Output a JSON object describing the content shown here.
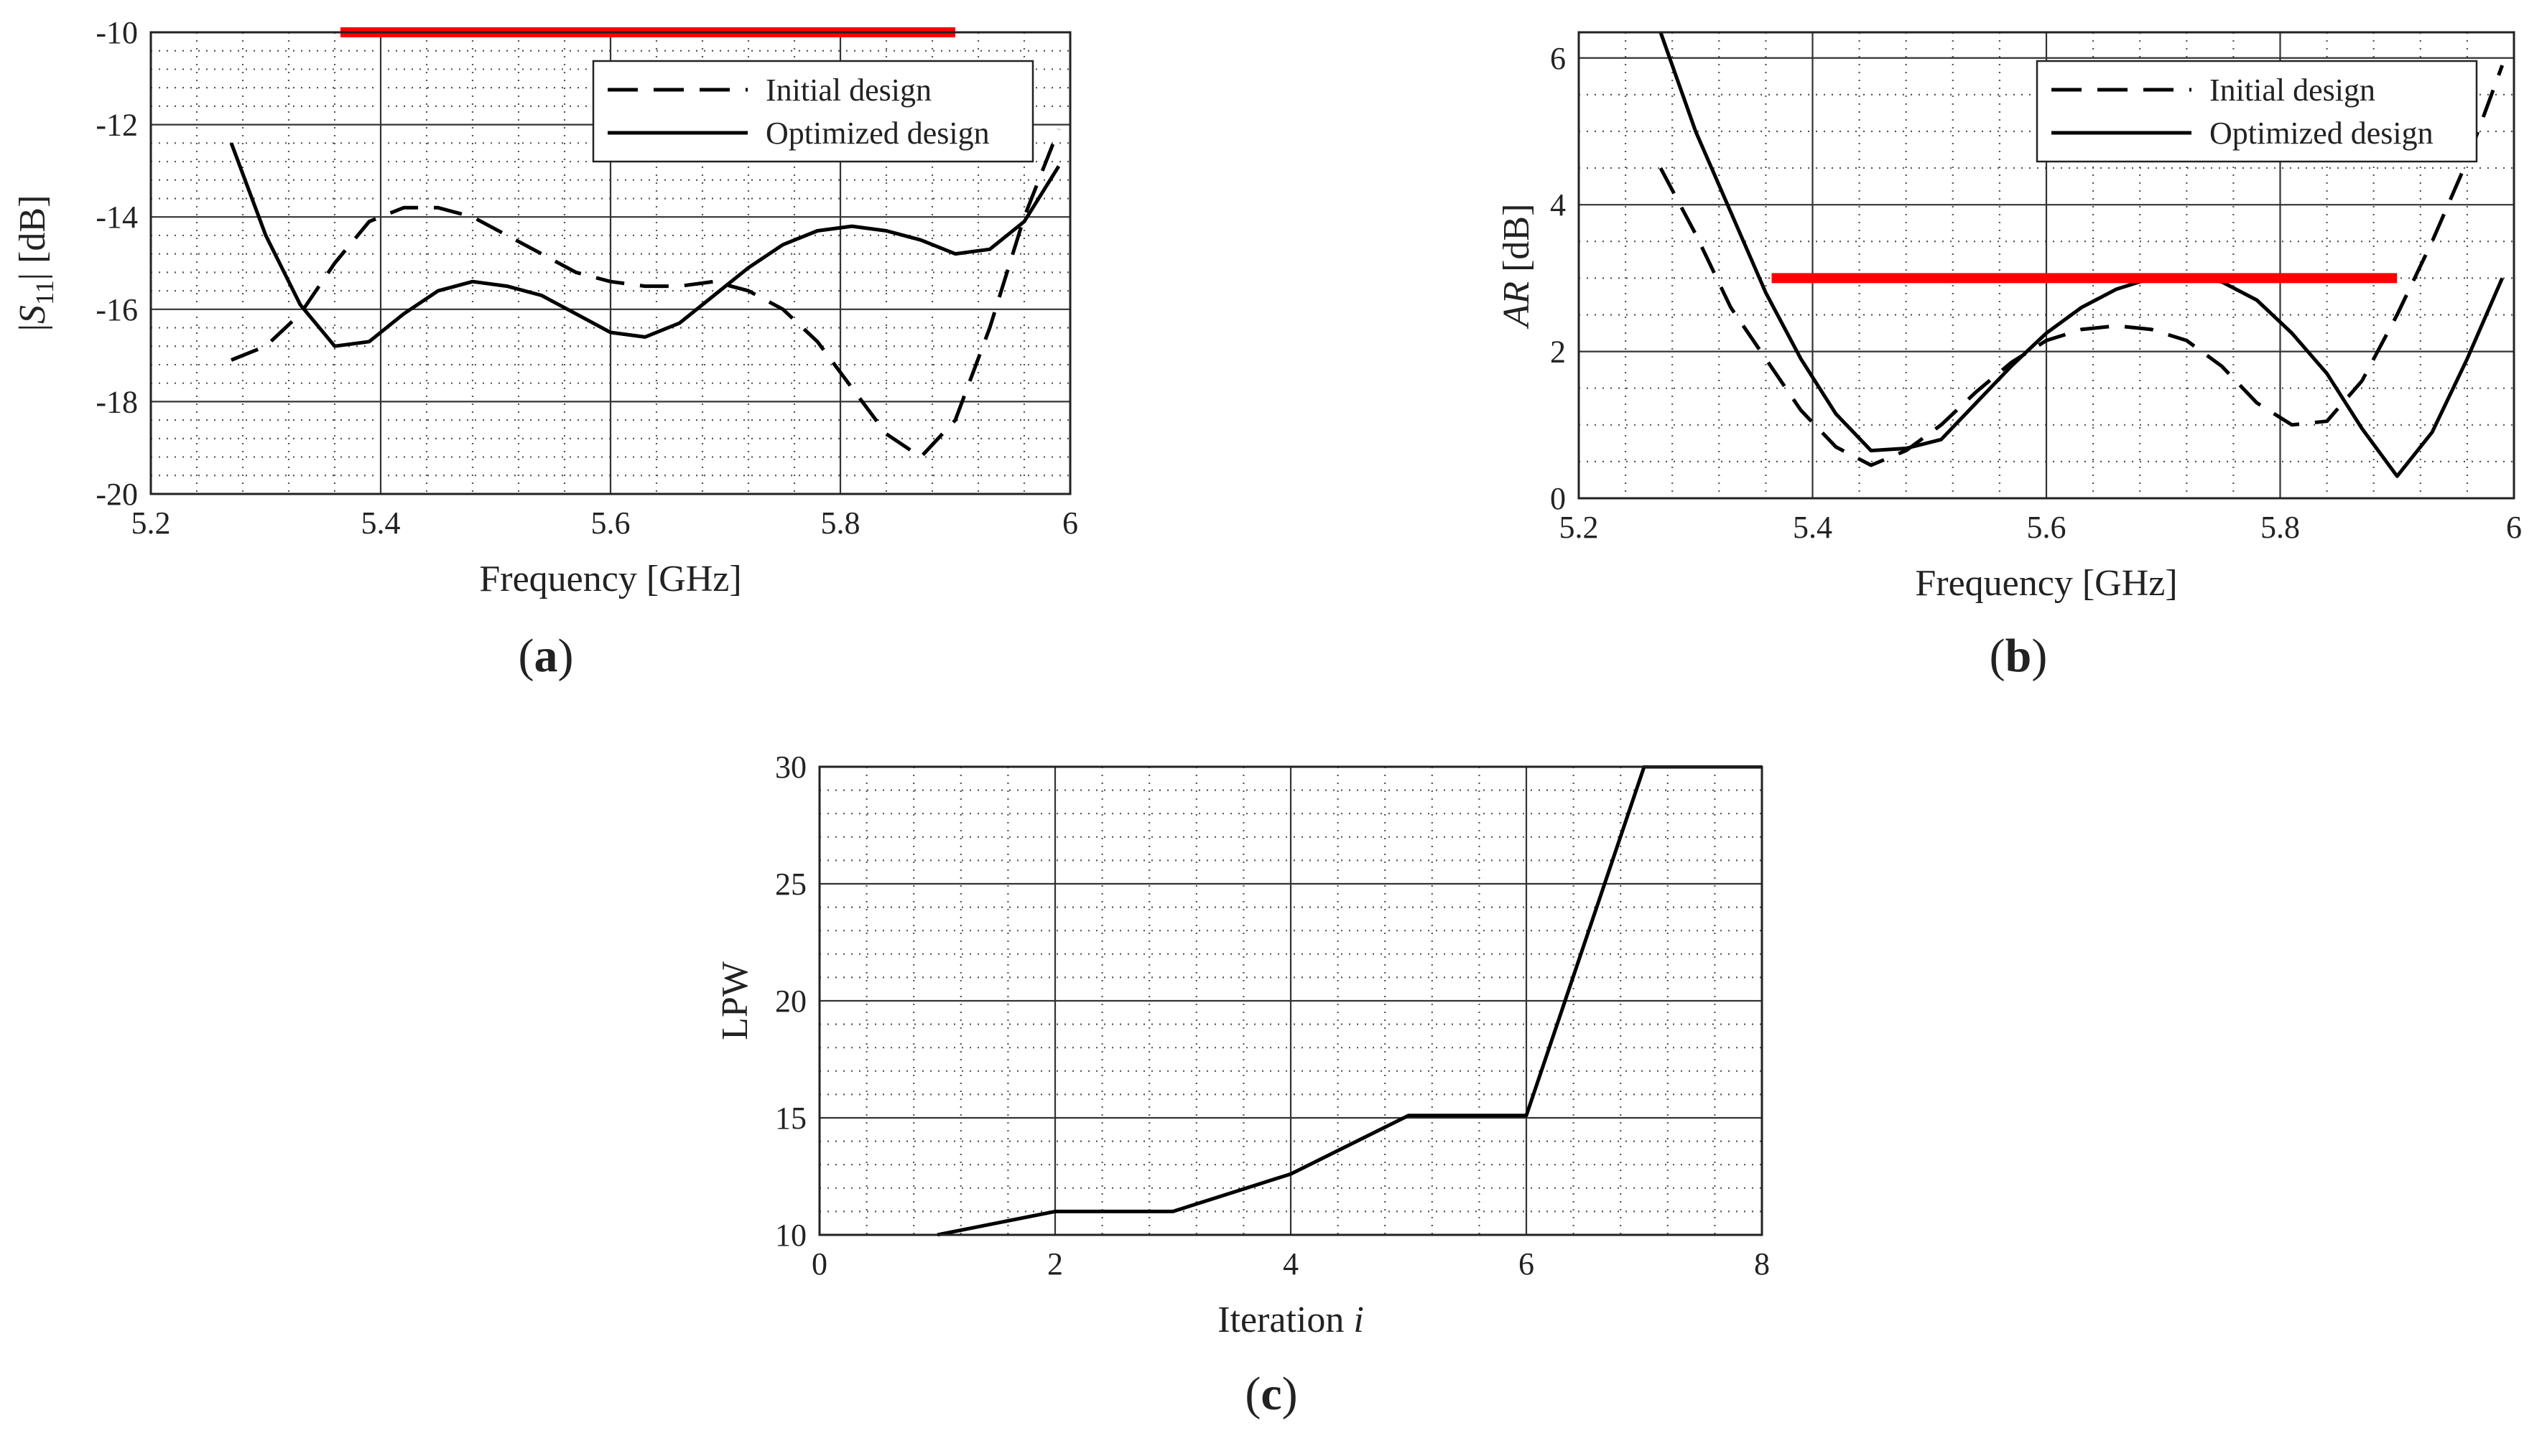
{
  "colors": {
    "axis": "#222222",
    "major_grid": "#333333",
    "minor_grid": "#555555",
    "spec_line": "#ff0000",
    "series": "#000000"
  },
  "chart_data": [
    {
      "id": "a",
      "type": "line",
      "panel_label": "a",
      "title": "",
      "xlabel": "Frequency [GHz]",
      "ylabel": "|S11| [dB]",
      "ylabel_parts": {
        "open": "|",
        "var": "S",
        "sub": "11",
        "close": "| [dB]"
      },
      "xlim": [
        5.2,
        6
      ],
      "ylim": [
        -20,
        -10
      ],
      "xticks": [
        "5.2",
        "5.4",
        "5.6",
        "5.8",
        "6"
      ],
      "yticks": [
        "-20",
        "-18",
        "-16",
        "-14",
        "-12",
        "-10"
      ],
      "grid": true,
      "legend": {
        "position": "top-right",
        "entries": [
          "Initial design",
          "Optimized design"
        ]
      },
      "spec_line": {
        "x": [
          5.365,
          5.9
        ],
        "y": -10
      },
      "series": [
        {
          "name": "Initial design",
          "style": "dashed",
          "x": [
            5.27,
            5.3,
            5.33,
            5.36,
            5.39,
            5.42,
            5.45,
            5.48,
            5.51,
            5.54,
            5.57,
            5.6,
            5.63,
            5.66,
            5.69,
            5.72,
            5.75,
            5.78,
            5.81,
            5.84,
            5.87,
            5.9,
            5.93,
            5.96,
            5.99
          ],
          "values": [
            -17.1,
            -16.8,
            -16.1,
            -15.0,
            -14.1,
            -13.8,
            -13.8,
            -14.0,
            -14.4,
            -14.8,
            -15.2,
            -15.4,
            -15.5,
            -15.5,
            -15.4,
            -15.6,
            -16.0,
            -16.7,
            -17.7,
            -18.7,
            -19.2,
            -18.4,
            -16.4,
            -14.0,
            -12.1
          ]
        },
        {
          "name": "Optimized design",
          "style": "solid",
          "x": [
            5.27,
            5.3,
            5.33,
            5.36,
            5.39,
            5.42,
            5.45,
            5.48,
            5.51,
            5.54,
            5.57,
            5.6,
            5.63,
            5.66,
            5.69,
            5.72,
            5.75,
            5.78,
            5.81,
            5.84,
            5.87,
            5.9,
            5.93,
            5.96,
            5.99
          ],
          "values": [
            -12.4,
            -14.4,
            -15.9,
            -16.8,
            -16.7,
            -16.1,
            -15.6,
            -15.4,
            -15.5,
            -15.7,
            -16.1,
            -16.5,
            -16.6,
            -16.3,
            -15.7,
            -15.1,
            -14.6,
            -14.3,
            -14.2,
            -14.3,
            -14.5,
            -14.8,
            -14.7,
            -14.1,
            -12.9
          ]
        }
      ]
    },
    {
      "id": "b",
      "type": "line",
      "panel_label": "b",
      "title": "",
      "xlabel": "Frequency [GHz]",
      "ylabel": "AR [dB]",
      "ylabel_parts": {
        "var": "AR",
        "rest": " [dB]"
      },
      "xlim": [
        5.2,
        6
      ],
      "ylim": [
        0,
        6.35
      ],
      "xticks": [
        "5.2",
        "5.4",
        "5.6",
        "5.8",
        "6"
      ],
      "yticks": [
        "0",
        "2",
        "4",
        "6"
      ],
      "grid": true,
      "legend": {
        "position": "top-right",
        "entries": [
          "Initial design",
          "Optimized design"
        ]
      },
      "spec_line": {
        "x": [
          5.365,
          5.9
        ],
        "y": 3
      },
      "series": [
        {
          "name": "Initial design",
          "style": "dashed",
          "x": [
            5.27,
            5.3,
            5.33,
            5.36,
            5.39,
            5.42,
            5.45,
            5.48,
            5.51,
            5.54,
            5.57,
            5.6,
            5.63,
            5.66,
            5.69,
            5.72,
            5.75,
            5.78,
            5.81,
            5.84,
            5.87,
            5.9,
            5.93,
            5.96,
            5.99
          ],
          "values": [
            4.5,
            3.6,
            2.6,
            1.9,
            1.2,
            0.7,
            0.45,
            0.65,
            1.0,
            1.45,
            1.85,
            2.15,
            2.3,
            2.35,
            2.3,
            2.15,
            1.8,
            1.3,
            1.0,
            1.05,
            1.6,
            2.5,
            3.5,
            4.6,
            5.9
          ]
        },
        {
          "name": "Optimized design",
          "style": "solid",
          "x": [
            5.27,
            5.3,
            5.33,
            5.36,
            5.39,
            5.42,
            5.45,
            5.48,
            5.51,
            5.54,
            5.57,
            5.6,
            5.63,
            5.66,
            5.69,
            5.72,
            5.75,
            5.78,
            5.81,
            5.84,
            5.87,
            5.9,
            5.93,
            5.96,
            5.99
          ],
          "values": [
            6.35,
            5.0,
            3.9,
            2.8,
            1.9,
            1.15,
            0.65,
            0.68,
            0.8,
            1.3,
            1.8,
            2.25,
            2.6,
            2.85,
            3.0,
            3.02,
            2.95,
            2.7,
            2.25,
            1.7,
            0.95,
            0.3,
            0.9,
            1.9,
            3.0
          ]
        }
      ]
    },
    {
      "id": "c",
      "type": "line",
      "panel_label": "c",
      "title": "",
      "xlabel": "Iteration i",
      "xlabel_parts": {
        "text": "Iteration ",
        "var": "i"
      },
      "ylabel": "LPW",
      "xlim": [
        0,
        8
      ],
      "ylim": [
        10,
        30
      ],
      "xticks": [
        "0",
        "2",
        "4",
        "6",
        "8"
      ],
      "yticks": [
        "10",
        "15",
        "20",
        "25",
        "30"
      ],
      "grid": true,
      "series": [
        {
          "name": "LPW",
          "style": "solid",
          "x": [
            1,
            2,
            3,
            4,
            5,
            6,
            7,
            8
          ],
          "values": [
            10,
            11,
            11,
            12.6,
            15.1,
            15.1,
            30,
            30
          ]
        }
      ]
    }
  ]
}
